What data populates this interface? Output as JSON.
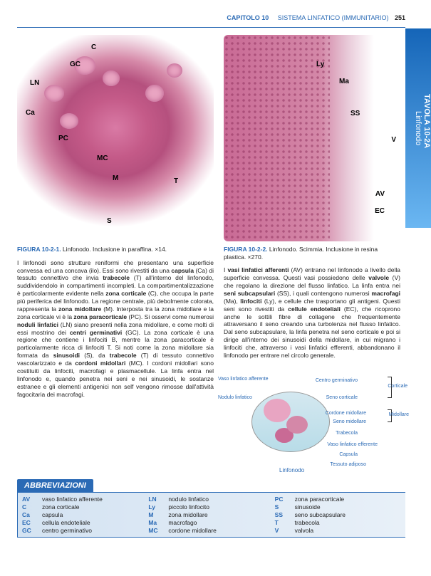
{
  "header": {
    "chapter": "CAPITOLO 10",
    "section": "SISTEMA LINFATICO (IMMUNITARIO)",
    "page": "251"
  },
  "side_tab": {
    "tavola": "TAVOLA 10-2A",
    "title": "Linfonodo"
  },
  "figure1": {
    "caption_no": "FIGURA 10-2-1.",
    "caption_text": " Linfonodo. Inclusione in paraffina. ×14.",
    "labels": {
      "C": "C",
      "GC": "GC",
      "LN": "LN",
      "Ca": "Ca",
      "PC": "PC",
      "MC": "MC",
      "M": "M",
      "T": "T",
      "S": "S"
    }
  },
  "figure2": {
    "caption_no": "FIGURA 10-2-2.",
    "caption_text": " Linfonodo. Scimmia. Inclusione in resina plastica. ×270.",
    "labels": {
      "Ly": "Ly",
      "Ma": "Ma",
      "SS": "SS",
      "V": "V",
      "AV": "AV",
      "EC": "EC"
    }
  },
  "text_left": "I linfonodi sono strutture reniformi che presentano una superficie convessa ed una concava (ilo). Essi sono rivestiti da una <b>capsula</b> (Ca) di tessuto connettivo che invia <b>trabecole</b> (T) all'interno del linfonodo, suddividendolo in compartimenti incompleti. La compartimentalizzazione è particolarmente evidente nella <b>zona corticale</b> (C), che occupa la parte più periferica del linfonodo. La regione centrale, più debolmente colorata, rappresenta la <b>zona midollare</b> (M). Interposta tra la zona midollare e la zona corticale vi è la <b>zona paracorticale</b> (PC). Si osservi come numerosi <b>noduli linfatici</b> (LN) siano presenti nella zona midollare, e come molti di essi mostrino dei <b>centri germinativi</b> (GC). La zona corticale è una regione che contiene i linfociti B, mentre la zona paracorticale è particolarmente ricca di linfociti T. Si noti come la zona midollare sia formata da <b>sinusoidi</b> (S), da <b>trabecole</b> (T) di tessuto connettivo vascolarizzato e da <b>cordoni midollari</b> (MC). I cordoni midollari sono costituiti da linfociti, macrofagi e plasmacellule. La linfa entra nel linfonodo e, quando penetra nei seni e nei sinusoidi, le sostanze estranee e gli elementi antigenici non self vengono rimosse dall'attività fagocitaria dei macrofagi.",
  "text_right": "I <b>vasi linfatici afferenti</b> (AV) entrano nel linfonodo a livello della superficie convessa. Questi vasi possiedono delle <b>valvole</b> (V) che regolano la direzione del flusso linfatico. La linfa entra nei <b>seni subcapsulari</b> (SS), i quali contengono numerosi <b>macrofagi</b> (Ma), <b>linfociti</b> (Ly), e cellule che trasportano gli antigeni. Questi seni sono rivestiti da <b>cellule endoteliali</b> (EC), che ricoprono anche le sottili fibre di collagene che frequentemente attraversano il seno creando una turbolenza nel flusso linfatico. Dal seno subcapsulare, la linfa penetra nel seno corticale e poi si dirige all'interno dei sinusoidi della midollare, in cui migrano i linfociti che, attraverso i vasi linfatici efferenti, abbandonano il linfonodo per entrare nel circolo generale.",
  "diagram": {
    "title": "Linfonodo",
    "labels": {
      "vaso_aff": "Vaso linfatico afferente",
      "nodulo": "Nodulo linfatico",
      "centro_germ": "Centro germinativo",
      "seno_cort": "Seno corticale",
      "cordone": "Cordone midollare",
      "seno_mid": "Seno midollare",
      "trabecola": "Trabecola",
      "vaso_eff": "Vaso linfatico efferente",
      "capsula": "Capsula",
      "tessuto": "Tessuto adiposo",
      "corticale": "Corticale",
      "midollare": "Midollare"
    }
  },
  "abbreviations": {
    "header": "ABBREVIAZIONI",
    "items": [
      {
        "abbr": "AV",
        "def": "vaso linfatico afferente"
      },
      {
        "abbr": "C",
        "def": "zona corticale"
      },
      {
        "abbr": "Ca",
        "def": "capsula"
      },
      {
        "abbr": "EC",
        "def": "cellula endoteliale"
      },
      {
        "abbr": "GC",
        "def": "centro germinativo"
      },
      {
        "abbr": "LN",
        "def": "nodulo linfatico"
      },
      {
        "abbr": "Ly",
        "def": "piccolo linfocito"
      },
      {
        "abbr": "M",
        "def": "zona midollare"
      },
      {
        "abbr": "Ma",
        "def": "macrofago"
      },
      {
        "abbr": "MC",
        "def": "cordone midollare"
      },
      {
        "abbr": "PC",
        "def": "zona paracorticale"
      },
      {
        "abbr": "S",
        "def": "sinusoide"
      },
      {
        "abbr": "SS",
        "def": "seno subcapsulare"
      },
      {
        "abbr": "T",
        "def": "trabecola"
      },
      {
        "abbr": "V",
        "def": "valvola"
      }
    ]
  },
  "colors": {
    "accent": "#2a6ab5",
    "tissue_pink": "#c96a95",
    "tissue_light": "#e8a5c2",
    "tab_grad_top": "#1565b8",
    "tab_grad_bot": "#6bb7f2"
  }
}
